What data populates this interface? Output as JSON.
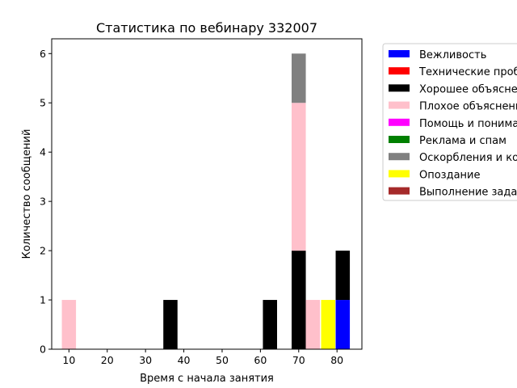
{
  "chart_data": {
    "type": "bar",
    "stacked": true,
    "title": "Статистика по вебинару 332007",
    "xlabel": "Время с начала занятия",
    "ylabel": "Количество сообщений",
    "xlim": [
      5.5,
      86.5
    ],
    "ylim": [
      0,
      6.3
    ],
    "xticks": [
      10,
      20,
      30,
      40,
      50,
      60,
      70,
      80
    ],
    "yticks": [
      0,
      1,
      2,
      3,
      4,
      5,
      6
    ],
    "bar_width": 3.7,
    "legend_position": "outside-right",
    "grid": false,
    "series": [
      {
        "name": "Вежливость",
        "color": "#0000ff",
        "points": [
          {
            "x": 81.5,
            "y": 1
          }
        ]
      },
      {
        "name": "Технические проблемы",
        "color": "#ff0000",
        "points": []
      },
      {
        "name": "Хорошее объяснение",
        "color": "#000000",
        "points": [
          {
            "x": 36.5,
            "y": 1
          },
          {
            "x": 62.5,
            "y": 1
          },
          {
            "x": 70.0,
            "y": 2
          },
          {
            "x": 81.5,
            "y": 1
          }
        ]
      },
      {
        "name": "Плохое объяснение",
        "color": "#ffc0cb",
        "points": [
          {
            "x": 10.0,
            "y": 1
          },
          {
            "x": 70.0,
            "y": 3
          },
          {
            "x": 73.7,
            "y": 1
          }
        ]
      },
      {
        "name": "Помощь и понимание",
        "color": "#ff00ff",
        "points": []
      },
      {
        "name": "Реклама и спам",
        "color": "#008000",
        "points": []
      },
      {
        "name": "Оскорбления и конфликты",
        "color": "#808080",
        "points": [
          {
            "x": 70.0,
            "y": 1
          }
        ]
      },
      {
        "name": "Опоздание",
        "color": "#ffff00",
        "points": [
          {
            "x": 77.7,
            "y": 1
          }
        ]
      },
      {
        "name": "Выполнение заданий",
        "color": "#a52a2a",
        "points": []
      }
    ]
  }
}
